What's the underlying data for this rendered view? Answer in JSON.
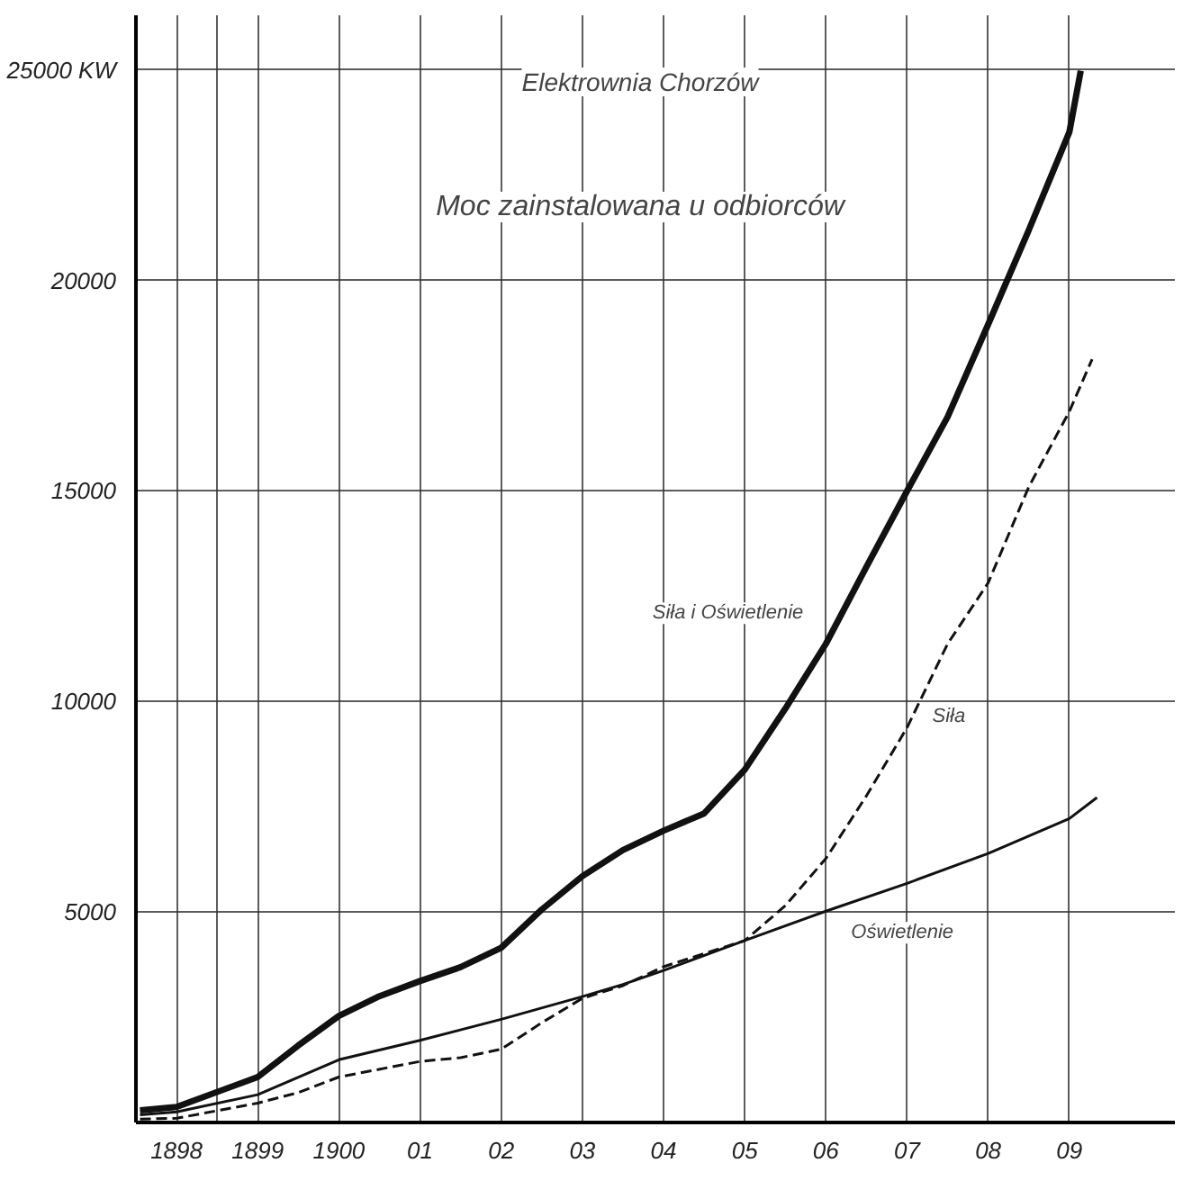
{
  "chart_data": {
    "type": "line",
    "title": "Elektrownia Chorzów",
    "subtitle": "Moc zainstalowana u odbiorców",
    "xlim": [
      1897.5,
      1910.3
    ],
    "ylim": [
      0,
      26300
    ],
    "xticks": [
      {
        "value": 1898,
        "label": "1898"
      },
      {
        "value": 1898.5,
        "label": null
      },
      {
        "value": 1899,
        "label": "1899"
      },
      {
        "value": 1900,
        "label": "1900"
      },
      {
        "value": 1901,
        "label": "01"
      },
      {
        "value": 1902,
        "label": "02"
      },
      {
        "value": 1903,
        "label": "03"
      },
      {
        "value": 1904,
        "label": "04"
      },
      {
        "value": 1905,
        "label": "05"
      },
      {
        "value": 1906,
        "label": "06"
      },
      {
        "value": 1907,
        "label": "07"
      },
      {
        "value": 1908,
        "label": "08"
      },
      {
        "value": 1909,
        "label": "09"
      }
    ],
    "yticks": [
      5000,
      10000,
      15000,
      20000,
      {
        "value": 25000,
        "label": "25000 KW"
      }
    ],
    "grid": true,
    "marker": "none",
    "series": [
      {
        "color": "#111111",
        "line_style": "solid",
        "x": [
          1897.55,
          1898,
          1899,
          1899.5,
          1900,
          1900.5,
          1901,
          1901.5,
          1902,
          1902.5,
          1903,
          1903.5,
          1904,
          1904.5,
          1905,
          1905.5,
          1906,
          1906.5,
          1907,
          1907.5,
          1908,
          1908.5,
          1909,
          1909.14
        ],
        "values": [
          290,
          370,
          1080,
          1830,
          2530,
          3000,
          3360,
          3690,
          4150,
          5060,
          5850,
          6470,
          6930,
          7340,
          8380,
          9830,
          11370,
          13200,
          15000,
          16760,
          18960,
          21200,
          23530,
          24980
        ]
      },
      {
        "color": "#111111",
        "line_style": "dashed",
        "x": [
          1897.55,
          1898,
          1899,
          1899.5,
          1900,
          1901,
          1901.5,
          1902,
          1902.5,
          1903,
          1903.5,
          1904,
          1905,
          1905.5,
          1906,
          1906.5,
          1907,
          1907.5,
          1908,
          1908.5,
          1909,
          1909.28
        ],
        "values": [
          80,
          100,
          460,
          710,
          1080,
          1450,
          1540,
          1740,
          2370,
          2950,
          3250,
          3700,
          4320,
          5150,
          6270,
          7760,
          9380,
          11370,
          12820,
          15100,
          16890,
          18130
        ]
      },
      {
        "color": "#111111",
        "line_style": "solid",
        "x": [
          1897.55,
          1898,
          1899,
          1900,
          1901,
          1902,
          1903,
          1903.5,
          1904,
          1905,
          1906,
          1907,
          1908,
          1909,
          1909.34
        ],
        "values": [
          180,
          250,
          660,
          1490,
          1950,
          2450,
          2990,
          3280,
          3610,
          4320,
          5020,
          5680,
          6390,
          7220,
          7720
        ]
      }
    ],
    "annotations": [
      {
        "text": "Siła i Oświetlenie",
        "x": 1905.9,
        "y": 10900
      },
      {
        "text": "Siła",
        "x": 1907,
        "y": 9380
      },
      {
        "text": "Oświetlenie",
        "x": 1906,
        "y": 5020
      }
    ]
  }
}
